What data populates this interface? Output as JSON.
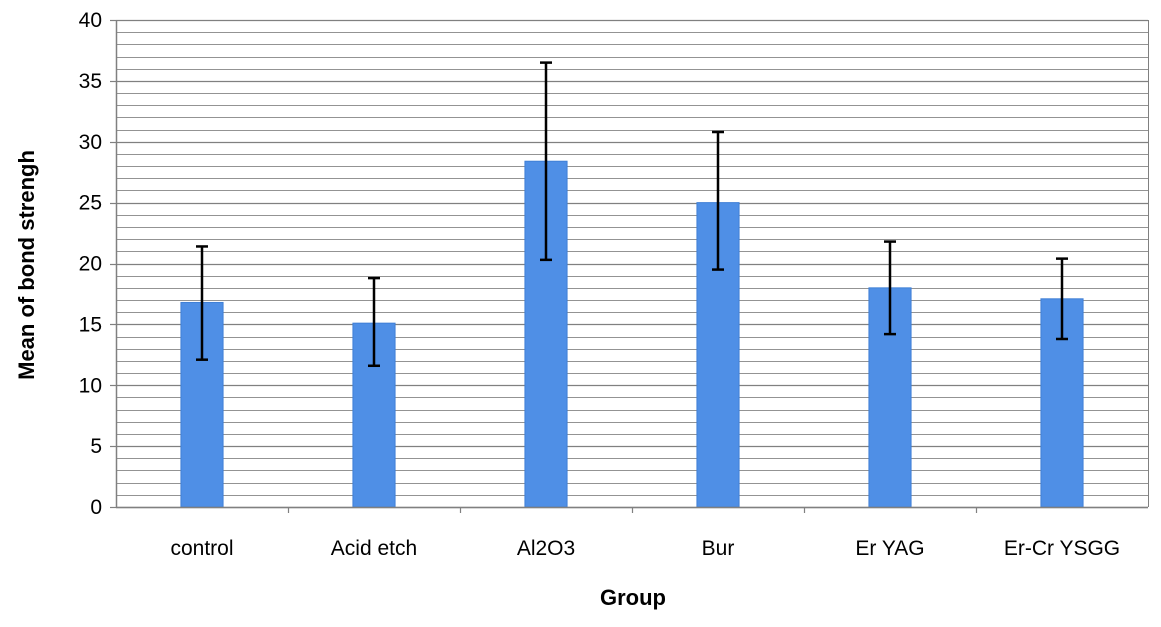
{
  "chart_data": {
    "type": "bar",
    "title": "",
    "xlabel": "Group",
    "ylabel": "Mean of bond strengh",
    "categories": [
      "control",
      "Acid etch",
      "Al2O3",
      "Bur",
      "Er YAG",
      "Er-Cr YSGG"
    ],
    "series": [
      {
        "values": [
          16.8,
          15.1,
          28.4,
          25.0,
          18.0,
          17.1
        ],
        "error_low": [
          12.1,
          11.6,
          20.3,
          19.5,
          14.2,
          13.8
        ],
        "error_high": [
          21.4,
          18.8,
          36.5,
          30.8,
          21.8,
          20.4
        ]
      }
    ],
    "ylim": [
      0,
      40
    ],
    "y_ticks": [
      0,
      5,
      10,
      15,
      20,
      25,
      30,
      35,
      40
    ],
    "minor_gridline_step": 1,
    "grid": true,
    "legend": "none",
    "colors": {
      "bar": "#4f8fe6",
      "bar_edge": "#3f7fd6",
      "gridline": "#808080",
      "error_bar": "#000000"
    }
  }
}
